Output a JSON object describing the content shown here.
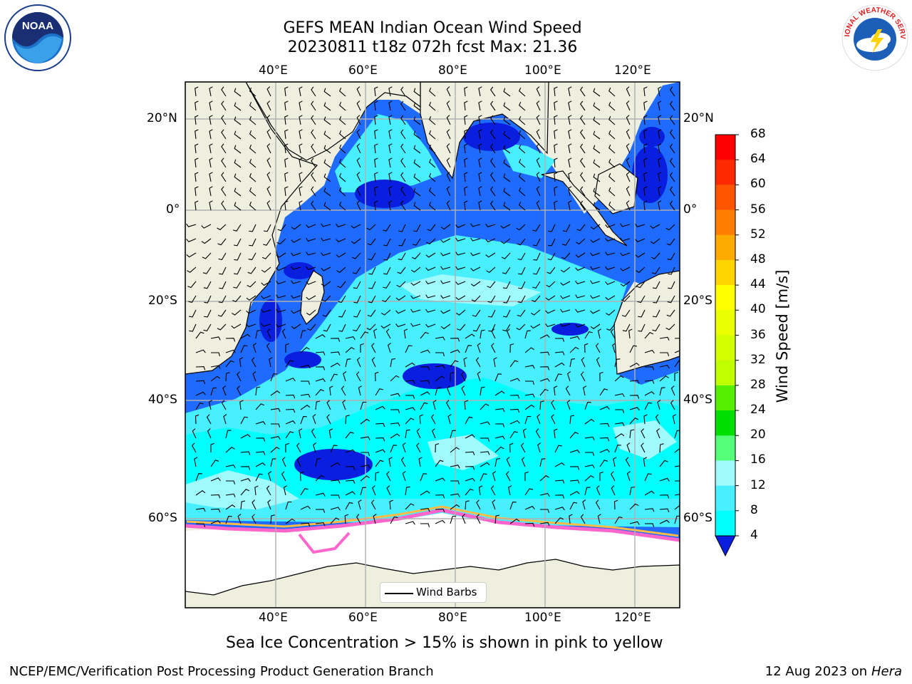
{
  "header": {
    "title_line1": "GEFS MEAN Indian Ocean Wind Speed",
    "title_line2": "20230811 t18z 072h fcst   Max: 21.36"
  },
  "map": {
    "lon_labels": [
      "40°E",
      "60°E",
      "80°E",
      "100°E",
      "120°E"
    ],
    "lat_labels": [
      "20°N",
      "0°",
      "20°S",
      "40°S",
      "60°S"
    ],
    "legend_label": "Wind Barbs",
    "colors": {
      "land": "#efefdf",
      "ocean_4_8": "#1f6bff",
      "ocean_lt4": "#0a1ee0",
      "ocean_8_12": "#00ffff",
      "ocean_12_16": "#48f0ff",
      "ocean_16_20": "#a0fbff",
      "ice": "#ffffff",
      "ice_edge": "#ff66cc"
    }
  },
  "colorbar": {
    "title": "Wind Speed [m/s]",
    "ticks": [
      "68",
      "64",
      "60",
      "56",
      "52",
      "48",
      "44",
      "40",
      "36",
      "32",
      "28",
      "24",
      "20",
      "16",
      "12",
      "8",
      "4"
    ],
    "colors": [
      "#ff0000",
      "#ff2a00",
      "#ff5500",
      "#ff7f00",
      "#ffaa00",
      "#ffd400",
      "#ffff00",
      "#eaff00",
      "#d4ff00",
      "#bfff00",
      "#55ee00",
      "#00dd00",
      "#55ff77",
      "#a0fbff",
      "#48f0ff",
      "#00ffff",
      "#1f6bff"
    ],
    "under_color": "#0a1ee0"
  },
  "footer": {
    "caption": "Sea Ice Concentration > 15% is shown in pink to yellow",
    "left": "NCEP/EMC/Verification Post Processing Product Generation Branch",
    "right_date": "12 Aug 2023 on",
    "right_host": "Hera"
  },
  "logos": {
    "noaa_text": "NOAA",
    "nws_text": "NATIONAL WEATHER SERVICE"
  }
}
